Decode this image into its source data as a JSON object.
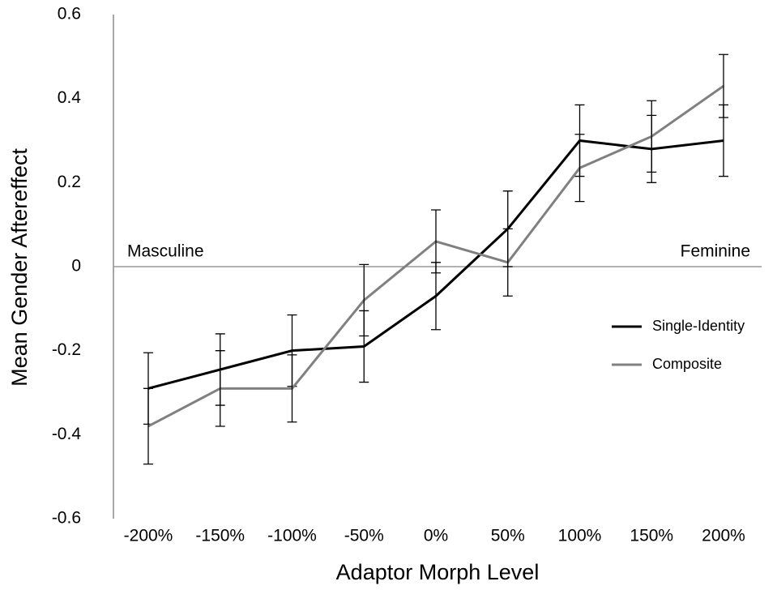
{
  "chart_data": {
    "type": "line",
    "x_label": "Adaptor Morph Level",
    "y_label": "Mean Gender Aftereffect",
    "categories": [
      "-200%",
      "-150%",
      "-100%",
      "-50%",
      "0%",
      "50%",
      "100%",
      "150%",
      "200%"
    ],
    "series": [
      {
        "name": "Single-Identity",
        "color": "#000000",
        "values": [
          -0.29,
          -0.245,
          -0.2,
          -0.19,
          -0.07,
          0.09,
          0.3,
          0.28,
          0.3
        ],
        "errors": [
          0.085,
          0.085,
          0.085,
          0.085,
          0.08,
          0.09,
          0.085,
          0.08,
          0.085
        ]
      },
      {
        "name": "Composite",
        "color": "#808080",
        "values": [
          -0.38,
          -0.29,
          -0.29,
          -0.08,
          0.06,
          0.01,
          0.235,
          0.31,
          0.43
        ],
        "errors": [
          0.09,
          0.09,
          0.08,
          0.085,
          0.075,
          0.08,
          0.08,
          0.085,
          0.075
        ]
      }
    ],
    "annotations": [
      "Masculine",
      "Feminine"
    ],
    "ylim": [
      -0.6,
      0.6
    ],
    "yticks": [
      -0.6,
      -0.4,
      -0.2,
      0,
      0.2,
      0.4,
      0.6
    ],
    "legend": "right"
  }
}
